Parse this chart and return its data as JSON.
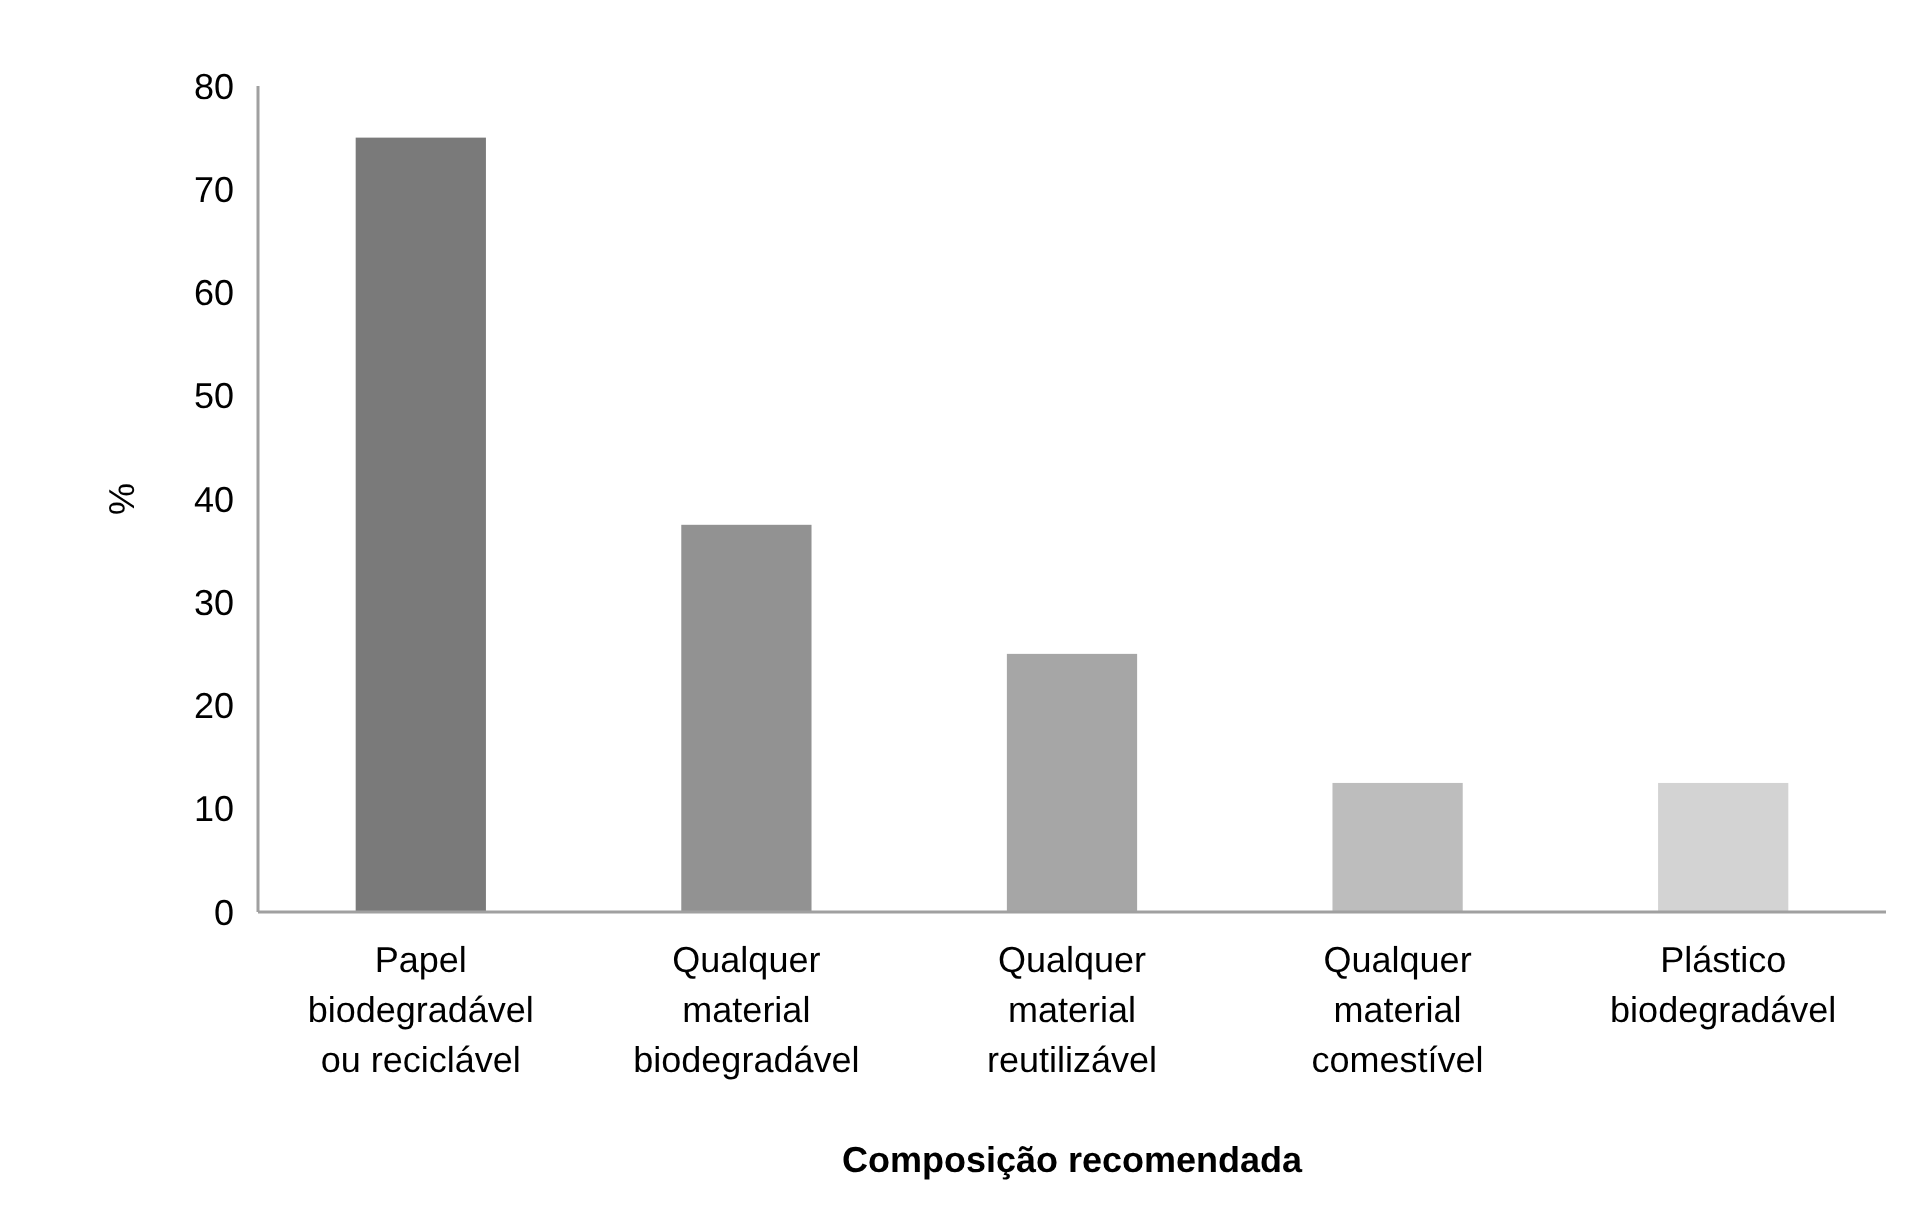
{
  "chart_data": {
    "type": "bar",
    "xlabel": "Composição recomendada",
    "ylabel": "%",
    "categories": [
      "Papel biodegradável ou reciclável",
      "Qualquer material biodegradável",
      "Qualquer material reutilizável",
      "Qualquer material comestível",
      "Plástico biodegradável"
    ],
    "values": [
      75,
      37.5,
      25,
      12.5,
      12.5
    ],
    "colors": [
      "#7a7a7a",
      "#929292",
      "#a6a6a6",
      "#bdbdbd",
      "#d3d3d3"
    ],
    "ylim": [
      0,
      80
    ],
    "yticks": [
      0,
      10,
      20,
      30,
      40,
      50,
      60,
      70,
      80
    ],
    "grid": false
  }
}
